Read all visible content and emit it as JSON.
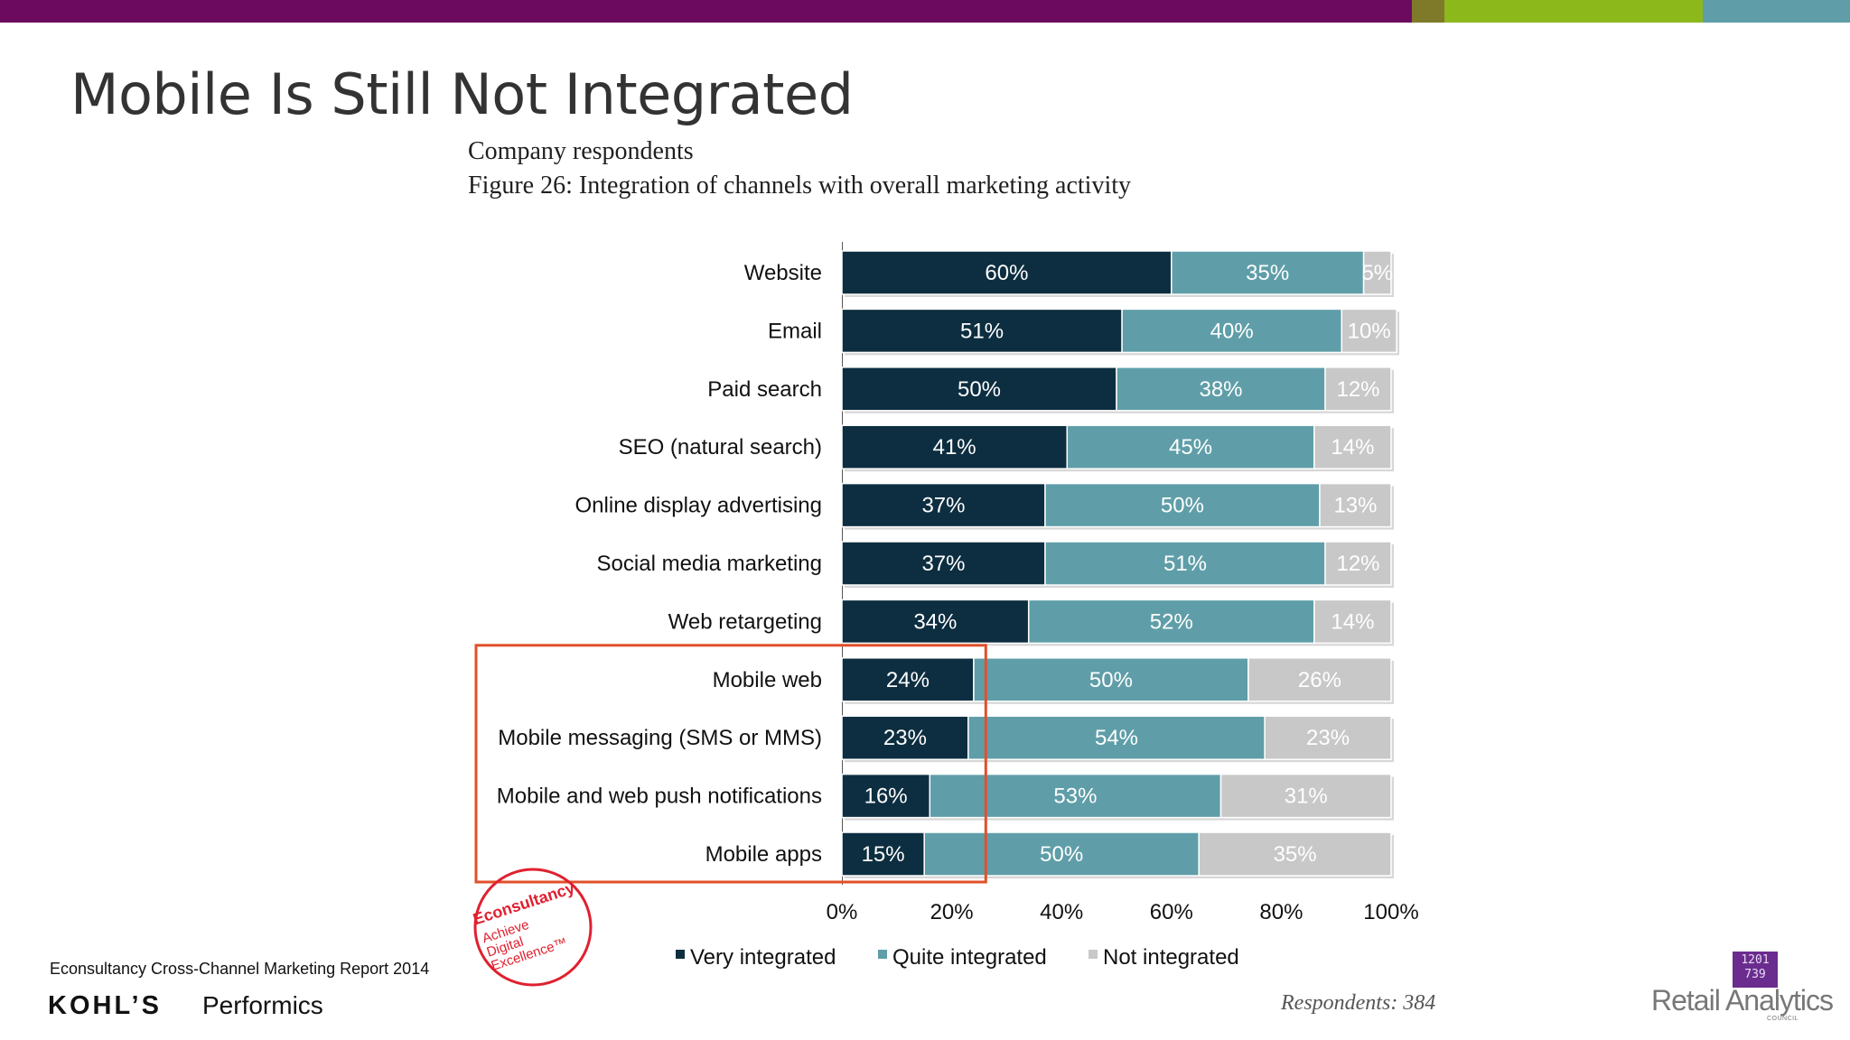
{
  "slide_title": "Mobile Is Still Not Integrated",
  "figure_subtitle": "Company respondents",
  "figure_title": "Figure 26: Integration of channels with overall marketing activity",
  "source_note": "Econsultancy Cross-Channel Marketing Report 2014",
  "respondents": "Respondents: 384",
  "logos": {
    "kohls": "KOHL'S",
    "performics": "Performics",
    "retail_analytics": "Retail Analytics",
    "retail_analytics_sub": "COUNCIL",
    "retail_analytics_cube": "1 2 0 1 | 2 8 | 7 3 9 5",
    "econsultancy_seal": "Econsultancy Achieve Digital Excellence"
  },
  "colors": {
    "very_integrated": "#0d2e40",
    "quite_integrated": "#5f9ea8",
    "not_integrated": "#c8c8c8",
    "highlight_box": "#e0502a",
    "topbar_purple": "#6b0a5f",
    "topbar_olive": "#7f7a2a",
    "topbar_green": "#8cb81c",
    "topbar_teal": "#5f9ea8"
  },
  "chart_data": {
    "type": "bar",
    "orientation": "horizontal",
    "stacked": true,
    "categories": [
      "Website",
      "Email",
      "Paid search",
      "SEO (natural search)",
      "Online display advertising",
      "Social media marketing",
      "Web retargeting",
      "Mobile web",
      "Mobile messaging (SMS or MMS)",
      "Mobile and web push notifications",
      "Mobile apps"
    ],
    "series": [
      {
        "name": "Very integrated",
        "values": [
          60,
          51,
          50,
          41,
          37,
          37,
          34,
          24,
          23,
          16,
          15
        ]
      },
      {
        "name": "Quite integrated",
        "values": [
          35,
          40,
          38,
          45,
          50,
          51,
          52,
          50,
          54,
          53,
          50
        ]
      },
      {
        "name": "Not integrated",
        "values": [
          5,
          10,
          12,
          14,
          13,
          12,
          14,
          26,
          23,
          31,
          35
        ]
      }
    ],
    "x_ticks": [
      "0%",
      "20%",
      "40%",
      "60%",
      "80%",
      "100%"
    ],
    "xlim": [
      0,
      100
    ],
    "unit": "%",
    "legend_position": "bottom",
    "highlighted_categories": [
      "Mobile web",
      "Mobile messaging (SMS or MMS)",
      "Mobile and web push notifications",
      "Mobile apps"
    ]
  }
}
